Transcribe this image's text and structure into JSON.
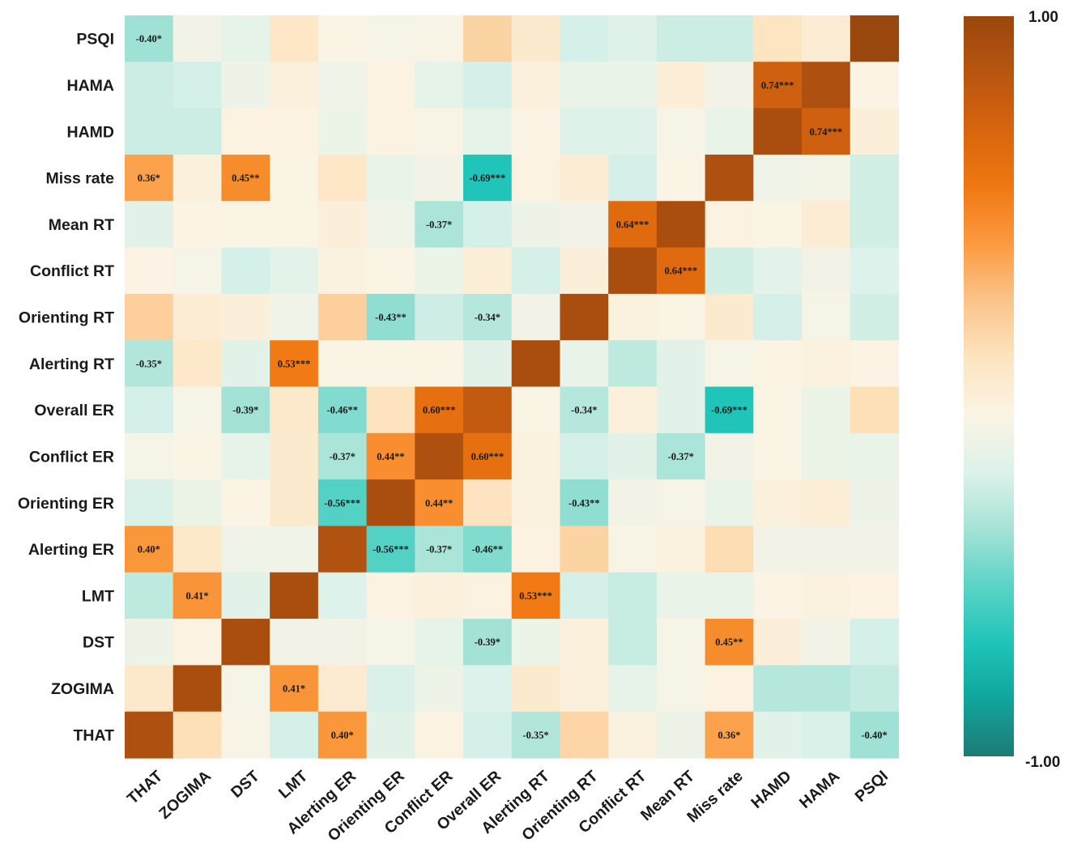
{
  "chart_data": {
    "type": "heatmap",
    "title": "",
    "x_labels": [
      "THAT",
      "ZOGIMA",
      "DST",
      "LMT",
      "Alerting ER",
      "Orienting ER",
      "Conflict ER",
      "Overall ER",
      "Alerting RT",
      "Orienting RT",
      "Conflict RT",
      "Mean  RT",
      "Miss rate",
      "HAMD",
      "HAMA",
      "PSQI"
    ],
    "y_labels_top_to_bottom": [
      "PSQI",
      "HAMA",
      "HAMD",
      "Miss rate",
      "Mean  RT",
      "Conflict RT",
      "Orienting RT",
      "Alerting RT",
      "Overall ER",
      "Conflict ER",
      "Orienting ER",
      "Alerting ER",
      "LMT",
      "DST",
      "ZOGIMA",
      "THAT"
    ],
    "color_range": [
      -1.0,
      1.0
    ],
    "colorbar_labels": {
      "max": "1.00",
      "min": "-1.00"
    },
    "colorbar_stops": [
      "#1e7a76",
      "#10a59c",
      "#1fc4b8",
      "#5cd3c7",
      "#a6e3d6",
      "#dcf2ea",
      "#fbf4e5",
      "#fde4c0",
      "#fcc48a",
      "#fc9a40",
      "#f07812",
      "#d8650e",
      "#b85510",
      "#9a470e"
    ],
    "values": [
      [
        -0.4,
        -0.12,
        -0.18,
        0.05,
        -0.08,
        -0.1,
        -0.09,
        0.16,
        0.02,
        -0.25,
        -0.22,
        -0.28,
        -0.28,
        0.07,
        0.0,
        1.0
      ],
      [
        -0.28,
        -0.25,
        -0.14,
        -0.04,
        -0.13,
        -0.06,
        -0.18,
        -0.25,
        -0.04,
        -0.16,
        -0.16,
        -0.02,
        -0.12,
        0.74,
        0.9,
        -0.07
      ],
      [
        -0.28,
        -0.28,
        -0.06,
        -0.06,
        -0.15,
        -0.06,
        -0.09,
        -0.18,
        -0.07,
        -0.22,
        -0.22,
        -0.1,
        -0.16,
        0.92,
        0.74,
        -0.03
      ],
      [
        0.36,
        -0.04,
        0.45,
        -0.08,
        0.05,
        -0.16,
        -0.12,
        -0.69,
        -0.06,
        0.0,
        -0.25,
        -0.08,
        0.9,
        -0.13,
        -0.11,
        -0.26
      ],
      [
        -0.2,
        -0.07,
        -0.08,
        -0.08,
        -0.03,
        -0.13,
        -0.37,
        -0.25,
        -0.14,
        -0.12,
        0.64,
        0.92,
        -0.06,
        -0.08,
        0.0,
        -0.26
      ],
      [
        -0.07,
        -0.1,
        -0.25,
        -0.19,
        -0.05,
        -0.08,
        -0.15,
        -0.02,
        -0.25,
        -0.03,
        0.92,
        0.64,
        -0.26,
        -0.19,
        -0.12,
        -0.23
      ],
      [
        0.18,
        0.0,
        -0.03,
        -0.13,
        0.18,
        -0.43,
        -0.27,
        -0.34,
        -0.12,
        0.92,
        -0.05,
        -0.08,
        0.02,
        -0.25,
        -0.1,
        -0.26
      ],
      [
        -0.35,
        0.04,
        -0.2,
        0.53,
        -0.08,
        -0.08,
        -0.08,
        -0.2,
        0.92,
        -0.16,
        -0.32,
        -0.2,
        -0.1,
        -0.07,
        -0.05,
        -0.07
      ],
      [
        -0.25,
        -0.1,
        -0.39,
        0.03,
        -0.46,
        0.08,
        0.6,
        0.8,
        -0.08,
        -0.34,
        -0.04,
        -0.2,
        -0.69,
        -0.08,
        -0.15,
        0.1
      ],
      [
        -0.1,
        -0.08,
        -0.18,
        0.02,
        -0.37,
        0.44,
        0.9,
        0.6,
        -0.05,
        -0.25,
        -0.2,
        -0.37,
        -0.12,
        -0.08,
        -0.15,
        -0.16
      ],
      [
        -0.24,
        -0.15,
        -0.07,
        0.02,
        -0.56,
        0.92,
        0.44,
        0.08,
        -0.05,
        -0.43,
        -0.12,
        -0.1,
        -0.16,
        -0.04,
        -0.02,
        -0.14
      ],
      [
        0.4,
        0.04,
        -0.13,
        -0.13,
        0.88,
        -0.56,
        -0.37,
        -0.46,
        -0.06,
        0.16,
        -0.09,
        -0.05,
        0.11,
        -0.12,
        -0.12,
        -0.12
      ],
      [
        -0.32,
        0.41,
        -0.2,
        0.92,
        -0.23,
        -0.06,
        -0.04,
        -0.06,
        0.53,
        -0.25,
        -0.29,
        -0.16,
        -0.16,
        -0.07,
        -0.05,
        -0.06
      ],
      [
        -0.14,
        -0.06,
        0.92,
        -0.12,
        -0.12,
        -0.1,
        -0.18,
        -0.39,
        -0.15,
        -0.04,
        -0.29,
        -0.1,
        0.45,
        -0.03,
        -0.12,
        -0.25
      ],
      [
        0.03,
        0.92,
        -0.1,
        0.41,
        0.01,
        -0.24,
        -0.14,
        -0.23,
        0.02,
        -0.04,
        -0.18,
        -0.1,
        -0.06,
        -0.34,
        -0.34,
        -0.3
      ],
      [
        0.9,
        0.1,
        -0.09,
        -0.25,
        0.4,
        -0.2,
        -0.06,
        -0.25,
        -0.35,
        0.15,
        -0.05,
        -0.14,
        0.36,
        -0.2,
        -0.24,
        -0.4
      ]
    ],
    "annotations": [
      {
        "row": 0,
        "col": 0,
        "text": "-0.40*"
      },
      {
        "row": 1,
        "col": 13,
        "text": "0.74***"
      },
      {
        "row": 2,
        "col": 14,
        "text": "0.74***"
      },
      {
        "row": 3,
        "col": 0,
        "text": "0.36*"
      },
      {
        "row": 3,
        "col": 2,
        "text": "0.45**"
      },
      {
        "row": 3,
        "col": 7,
        "text": "-0.69***"
      },
      {
        "row": 4,
        "col": 6,
        "text": "-0.37*"
      },
      {
        "row": 4,
        "col": 10,
        "text": "0.64***"
      },
      {
        "row": 5,
        "col": 11,
        "text": "0.64***"
      },
      {
        "row": 6,
        "col": 5,
        "text": "-0.43**"
      },
      {
        "row": 6,
        "col": 7,
        "text": "-0.34*"
      },
      {
        "row": 7,
        "col": 0,
        "text": "-0.35*"
      },
      {
        "row": 7,
        "col": 3,
        "text": "0.53***"
      },
      {
        "row": 8,
        "col": 2,
        "text": "-0.39*"
      },
      {
        "row": 8,
        "col": 4,
        "text": "-0.46**"
      },
      {
        "row": 8,
        "col": 6,
        "text": "0.60***"
      },
      {
        "row": 8,
        "col": 9,
        "text": "-0.34*"
      },
      {
        "row": 8,
        "col": 12,
        "text": "-0.69***"
      },
      {
        "row": 9,
        "col": 4,
        "text": "-0.37*"
      },
      {
        "row": 9,
        "col": 5,
        "text": "0.44**"
      },
      {
        "row": 9,
        "col": 7,
        "text": "0.60***"
      },
      {
        "row": 9,
        "col": 11,
        "text": "-0.37*"
      },
      {
        "row": 10,
        "col": 4,
        "text": "-0.56***"
      },
      {
        "row": 10,
        "col": 6,
        "text": "0.44**"
      },
      {
        "row": 10,
        "col": 9,
        "text": "-0.43**"
      },
      {
        "row": 11,
        "col": 0,
        "text": "0.40*"
      },
      {
        "row": 11,
        "col": 5,
        "text": "-0.56***"
      },
      {
        "row": 11,
        "col": 6,
        "text": "-0.37*"
      },
      {
        "row": 11,
        "col": 7,
        "text": "-0.46**"
      },
      {
        "row": 12,
        "col": 1,
        "text": "0.41*"
      },
      {
        "row": 12,
        "col": 8,
        "text": "0.53***"
      },
      {
        "row": 13,
        "col": 7,
        "text": "-0.39*"
      },
      {
        "row": 13,
        "col": 12,
        "text": "0.45**"
      },
      {
        "row": 14,
        "col": 3,
        "text": "0.41*"
      },
      {
        "row": 15,
        "col": 4,
        "text": "0.40*"
      },
      {
        "row": 15,
        "col": 8,
        "text": "-0.35*"
      },
      {
        "row": 15,
        "col": 12,
        "text": "0.36*"
      },
      {
        "row": 15,
        "col": 15,
        "text": "-0.40*"
      }
    ]
  }
}
